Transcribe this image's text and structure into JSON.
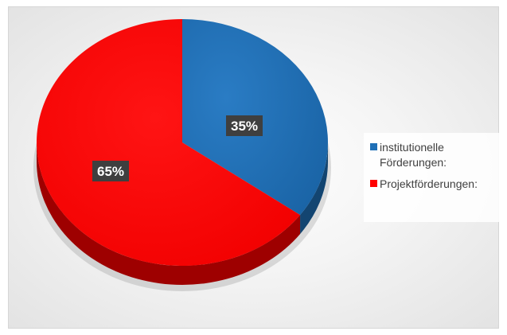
{
  "chart_data": {
    "type": "pie",
    "title": "",
    "slices": [
      {
        "label": "institutionelle Förderungen:",
        "value": 35,
        "display": "35%",
        "color": "#1f6fb6"
      },
      {
        "label": "Projektförderungen:",
        "value": 65,
        "display": "65%",
        "color": "#ff0000"
      }
    ],
    "legend_position": "right",
    "style": "3d"
  }
}
